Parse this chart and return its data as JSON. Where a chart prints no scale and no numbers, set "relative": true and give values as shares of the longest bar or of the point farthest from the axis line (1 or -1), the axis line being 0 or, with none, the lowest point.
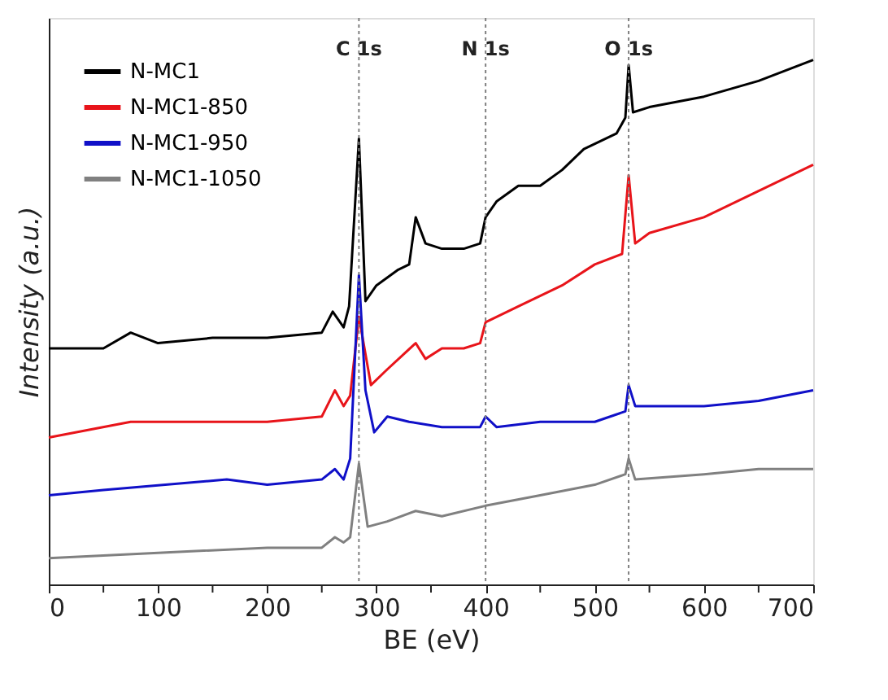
{
  "chart_data": {
    "type": "line",
    "relative": true,
    "xlabel": "BE (eV)",
    "ylabel": "Intensity (a.u.)",
    "xlim": [
      0,
      700
    ],
    "xticks": [
      0,
      {
        "value": 50,
        "label": null
      },
      100,
      {
        "value": 150,
        "label": null
      },
      200,
      {
        "value": 250,
        "label": null
      },
      300,
      {
        "value": 350,
        "label": null
      },
      400,
      {
        "value": 450,
        "label": null
      },
      500,
      {
        "value": 550,
        "label": null
      },
      600,
      {
        "value": 650,
        "label": null
      },
      700
    ],
    "grid": false,
    "legend": "top left",
    "tick_labels": "x",
    "marker": "none",
    "line_style": "solid",
    "ref_lines": [
      {
        "axis": "x",
        "value": 284,
        "label": "C 1s",
        "color": "#808080",
        "line_style": "dotted"
      },
      {
        "axis": "x",
        "value": 400,
        "label": "N 1s",
        "color": "#808080",
        "line_style": "dotted"
      },
      {
        "axis": "x",
        "value": 531,
        "label": "O 1s",
        "color": "#808080",
        "line_style": "dotted"
      }
    ],
    "series": [
      {
        "name": "N-MC1",
        "color": "#000000",
        "x": [
          0,
          50,
          75,
          100,
          150,
          200,
          250,
          260,
          270,
          275,
          284,
          290,
          300,
          320,
          330,
          336,
          345,
          360,
          380,
          395,
          400,
          410,
          430,
          450,
          470,
          490,
          520,
          528,
          531,
          535,
          550,
          600,
          650,
          700
        ],
        "values": [
          0.45,
          0.45,
          0.48,
          0.46,
          0.47,
          0.47,
          0.48,
          0.52,
          0.49,
          0.53,
          0.85,
          0.54,
          0.57,
          0.6,
          0.61,
          0.7,
          0.65,
          0.64,
          0.64,
          0.65,
          0.7,
          0.73,
          0.76,
          0.76,
          0.79,
          0.83,
          0.86,
          0.89,
          0.99,
          0.9,
          0.91,
          0.93,
          0.96,
          1.0
        ]
      },
      {
        "name": "N-MC1-850",
        "color": "#e8141a",
        "x": [
          0,
          75,
          150,
          200,
          250,
          262,
          270,
          276,
          284,
          295,
          310,
          336,
          345,
          360,
          380,
          395,
          400,
          430,
          470,
          500,
          525,
          531,
          537,
          550,
          600,
          650,
          700
        ],
        "values": [
          0.28,
          0.31,
          0.31,
          0.31,
          0.32,
          0.37,
          0.34,
          0.36,
          0.51,
          0.38,
          0.41,
          0.46,
          0.43,
          0.45,
          0.45,
          0.46,
          0.5,
          0.53,
          0.57,
          0.61,
          0.63,
          0.78,
          0.65,
          0.67,
          0.7,
          0.75,
          0.8
        ]
      },
      {
        "name": "N-MC1-950",
        "color": "#1010c8",
        "x": [
          0,
          50,
          163,
          200,
          250,
          262,
          270,
          276,
          284,
          290,
          298,
          310,
          330,
          360,
          395,
          400,
          410,
          450,
          500,
          528,
          531,
          537,
          600,
          650,
          700
        ],
        "values": [
          0.17,
          0.18,
          0.2,
          0.19,
          0.2,
          0.22,
          0.2,
          0.24,
          0.59,
          0.37,
          0.29,
          0.32,
          0.31,
          0.3,
          0.3,
          0.32,
          0.3,
          0.31,
          0.31,
          0.33,
          0.38,
          0.34,
          0.34,
          0.35,
          0.37
        ]
      },
      {
        "name": "N-MC1-1050",
        "color": "#808080",
        "x": [
          0,
          100,
          200,
          250,
          262,
          270,
          276,
          284,
          292,
          310,
          336,
          360,
          400,
          450,
          500,
          528,
          531,
          537,
          600,
          650,
          700
        ],
        "values": [
          0.05,
          0.06,
          0.07,
          0.07,
          0.09,
          0.08,
          0.09,
          0.23,
          0.11,
          0.12,
          0.14,
          0.13,
          0.15,
          0.17,
          0.19,
          0.21,
          0.24,
          0.2,
          0.21,
          0.22,
          0.22
        ]
      }
    ]
  }
}
